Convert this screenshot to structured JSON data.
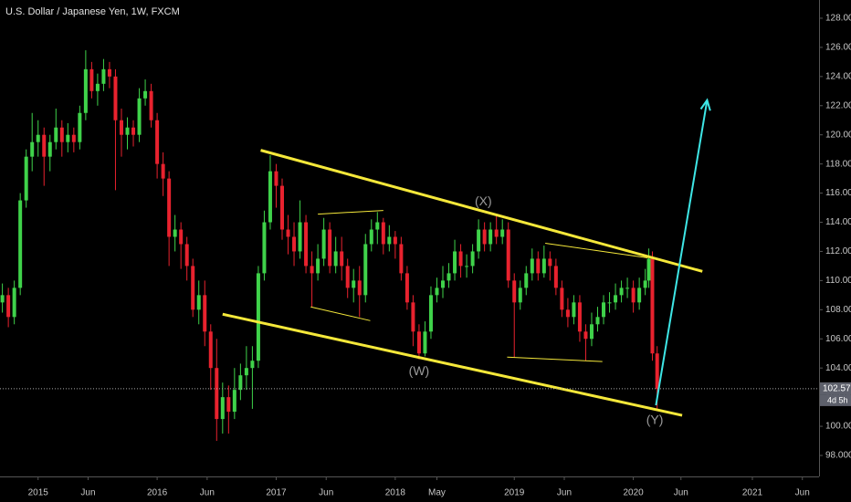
{
  "chart_data": {
    "type": "candlestick",
    "title": "U.S. Dollar / Japanese Yen, 1W, FXCM",
    "up_color": "#3fd24a",
    "down_color": "#e8222e",
    "xlim": [
      2014.68,
      2021.56
    ],
    "ylim": [
      96.56,
      129.25
    ],
    "xticks": [
      {
        "value": 2015,
        "label": "2015"
      },
      {
        "value": 2015.42,
        "label": "Jun"
      },
      {
        "value": 2016,
        "label": "2016"
      },
      {
        "value": 2016.42,
        "label": "Jun"
      },
      {
        "value": 2017,
        "label": "2017"
      },
      {
        "value": 2017.42,
        "label": "Jun"
      },
      {
        "value": 2018,
        "label": "2018"
      },
      {
        "value": 2018.35,
        "label": "May"
      },
      {
        "value": 2019,
        "label": "2019"
      },
      {
        "value": 2019.42,
        "label": "Jun"
      },
      {
        "value": 2020,
        "label": "2020"
      },
      {
        "value": 2020.4,
        "label": "Jun"
      },
      {
        "value": 2021,
        "label": "2021"
      },
      {
        "value": 2021.42,
        "label": "Jun"
      }
    ],
    "yticks": [
      {
        "value": 98,
        "label": "98.000"
      },
      {
        "value": 100,
        "label": "100.000"
      },
      {
        "value": 102,
        "label": "102.000"
      },
      {
        "value": 104,
        "label": "104.000"
      },
      {
        "value": 106,
        "label": "106.000"
      },
      {
        "value": 108,
        "label": "108.000"
      },
      {
        "value": 110,
        "label": "110.000"
      },
      {
        "value": 112,
        "label": "112.000"
      },
      {
        "value": 114,
        "label": "114.000"
      },
      {
        "value": 116,
        "label": "116.000"
      },
      {
        "value": 118,
        "label": "118.000"
      },
      {
        "value": 120,
        "label": "120.000"
      },
      {
        "value": 122,
        "label": "122.000"
      },
      {
        "value": 124,
        "label": "124.000"
      },
      {
        "value": 126,
        "label": "126.000"
      },
      {
        "value": 128,
        "label": "128.000"
      }
    ],
    "x": [
      2014.7,
      2014.75,
      2014.8,
      2014.85,
      2014.9,
      2014.95,
      2015.0,
      2015.05,
      2015.1,
      2015.15,
      2015.2,
      2015.25,
      2015.3,
      2015.35,
      2015.4,
      2015.45,
      2015.5,
      2015.55,
      2015.6,
      2015.65,
      2015.7,
      2015.75,
      2015.8,
      2015.85,
      2015.9,
      2015.95,
      2016.0,
      2016.05,
      2016.1,
      2016.15,
      2016.2,
      2016.25,
      2016.3,
      2016.35,
      2016.4,
      2016.45,
      2016.5,
      2016.55,
      2016.6,
      2016.65,
      2016.7,
      2016.75,
      2016.8,
      2016.85,
      2016.9,
      2016.95,
      2017.0,
      2017.05,
      2017.1,
      2017.15,
      2017.2,
      2017.25,
      2017.3,
      2017.35,
      2017.4,
      2017.45,
      2017.5,
      2017.55,
      2017.6,
      2017.65,
      2017.7,
      2017.75,
      2017.8,
      2017.85,
      2017.9,
      2017.95,
      2018.0,
      2018.05,
      2018.1,
      2018.15,
      2018.2,
      2018.25,
      2018.3,
      2018.35,
      2018.4,
      2018.45,
      2018.5,
      2018.55,
      2018.6,
      2018.65,
      2018.7,
      2018.75,
      2018.8,
      2018.85,
      2018.9,
      2018.95,
      2019.0,
      2019.05,
      2019.1,
      2019.15,
      2019.2,
      2019.25,
      2019.3,
      2019.35,
      2019.4,
      2019.45,
      2019.5,
      2019.55,
      2019.6,
      2019.65,
      2019.7,
      2019.75,
      2019.8,
      2019.85,
      2019.9,
      2019.95,
      2020.0,
      2020.05,
      2020.1,
      2020.13,
      2020.16,
      2020.2
    ],
    "open": [
      108.5,
      109.0,
      107.5,
      109.5,
      115.5,
      118.5,
      119.5,
      120.0,
      118.5,
      119.5,
      120.5,
      119.5,
      120.0,
      119.5,
      121.5,
      124.5,
      123.0,
      123.5,
      124.5,
      124.0,
      121.0,
      120.0,
      120.5,
      120.0,
      122.5,
      123.0,
      121.0,
      118.0,
      117.0,
      113.0,
      113.5,
      112.5,
      111.0,
      108.0,
      109.0,
      106.5,
      104.0,
      100.5,
      102.0,
      101.0,
      102.5,
      103.5,
      104.0,
      104.5,
      110.5,
      114.0,
      117.5,
      116.5,
      113.5,
      113.0,
      112.0,
      114.0,
      111.0,
      110.5,
      111.5,
      113.5,
      111.0,
      112.0,
      111.0,
      109.5,
      110.0,
      109.0,
      112.5,
      113.5,
      114.0,
      112.5,
      113.0,
      112.5,
      110.5,
      108.5,
      106.5,
      105.0,
      106.5,
      109.0,
      109.5,
      110.0,
      110.5,
      112.0,
      111.0,
      111.0,
      112.0,
      113.5,
      112.5,
      113.5,
      113.0,
      113.5,
      110.0,
      108.5,
      109.5,
      110.5,
      111.5,
      110.5,
      111.5,
      111.0,
      109.5,
      108.0,
      107.5,
      108.5,
      106.5,
      106.0,
      107.0,
      107.5,
      108.5,
      108.5,
      109.0,
      109.5,
      109.5,
      108.5,
      109.5,
      110.0,
      111.5,
      105.0
    ],
    "high": [
      109.8,
      109.5,
      110.0,
      116.0,
      119.0,
      121.5,
      121.0,
      120.5,
      120.0,
      121.8,
      121.0,
      120.8,
      120.5,
      122.0,
      125.8,
      125.0,
      124.2,
      125.2,
      125.0,
      124.5,
      121.8,
      121.2,
      121.0,
      123.2,
      123.8,
      123.5,
      121.5,
      118.8,
      117.5,
      114.5,
      114.0,
      113.0,
      111.5,
      110.0,
      110.0,
      107.0,
      106.0,
      103.0,
      102.8,
      104.0,
      104.3,
      105.5,
      105.5,
      111.0,
      114.8,
      118.6,
      118.0,
      117.0,
      114.5,
      114.0,
      115.5,
      114.5,
      112.0,
      112.5,
      114.3,
      114.0,
      113.0,
      113.0,
      111.5,
      110.8,
      111.0,
      113.2,
      114.2,
      114.7,
      114.3,
      113.8,
      113.4,
      113.0,
      111.0,
      109.0,
      107.0,
      107.2,
      109.6,
      110.2,
      111.0,
      111.2,
      112.8,
      112.5,
      111.8,
      112.5,
      114.2,
      114.0,
      114.0,
      114.5,
      114.2,
      114.0,
      110.5,
      110.0,
      111.0,
      112.2,
      112.0,
      112.4,
      112.0,
      111.5,
      110.0,
      108.8,
      109.0,
      109.0,
      107.0,
      107.8,
      108.2,
      109.0,
      109.2,
      109.8,
      110.0,
      110.2,
      110.0,
      110.2,
      110.8,
      112.2,
      112.0,
      105.5
    ],
    "low": [
      107.8,
      106.8,
      107.0,
      109.0,
      115.0,
      117.5,
      118.5,
      116.5,
      117.5,
      119.0,
      118.5,
      118.8,
      118.8,
      119.0,
      121.0,
      122.5,
      122.0,
      123.0,
      123.2,
      116.2,
      118.5,
      119.0,
      119.2,
      119.5,
      122.0,
      120.5,
      117.0,
      115.8,
      111.0,
      112.0,
      110.8,
      110.0,
      107.5,
      107.0,
      105.5,
      102.5,
      99.0,
      99.5,
      99.5,
      100.5,
      101.8,
      102.5,
      101.2,
      104.0,
      110.0,
      113.5,
      115.0,
      112.8,
      111.8,
      111.0,
      111.5,
      110.5,
      108.2,
      110.0,
      111.0,
      110.5,
      110.5,
      110.0,
      108.8,
      108.5,
      107.5,
      108.5,
      112.0,
      112.5,
      111.8,
      112.0,
      111.5,
      110.0,
      108.0,
      105.5,
      104.6,
      104.8,
      106.0,
      108.5,
      108.8,
      109.5,
      110.0,
      110.2,
      110.2,
      110.5,
      111.5,
      112.0,
      112.0,
      112.5,
      112.5,
      109.5,
      104.7,
      108.0,
      109.0,
      110.0,
      110.0,
      110.2,
      110.0,
      109.0,
      107.5,
      106.8,
      107.0,
      105.8,
      104.5,
      105.5,
      106.5,
      107.0,
      107.8,
      108.0,
      108.5,
      108.8,
      107.8,
      108.0,
      109.0,
      109.5,
      104.5,
      101.2
    ],
    "close": [
      109.0,
      107.5,
      109.5,
      115.5,
      118.5,
      119.5,
      120.0,
      118.5,
      119.5,
      120.5,
      119.5,
      120.0,
      119.5,
      121.5,
      124.5,
      123.0,
      123.5,
      124.5,
      124.0,
      121.0,
      120.0,
      120.5,
      120.0,
      122.5,
      123.0,
      121.0,
      118.0,
      117.0,
      113.0,
      113.5,
      112.5,
      111.0,
      108.0,
      109.0,
      106.5,
      104.0,
      100.5,
      102.0,
      101.0,
      102.5,
      103.5,
      104.0,
      104.5,
      110.5,
      114.0,
      117.5,
      116.5,
      113.5,
      113.0,
      112.0,
      114.0,
      111.0,
      110.5,
      111.5,
      113.5,
      111.0,
      112.0,
      111.0,
      109.5,
      110.0,
      109.0,
      112.5,
      113.5,
      114.0,
      112.5,
      113.0,
      112.5,
      110.5,
      108.5,
      106.5,
      105.0,
      106.5,
      109.0,
      109.5,
      110.0,
      110.5,
      112.0,
      111.0,
      111.0,
      112.0,
      113.5,
      112.5,
      113.5,
      113.0,
      113.5,
      110.0,
      108.5,
      109.5,
      110.5,
      111.5,
      110.5,
      111.5,
      111.0,
      109.5,
      108.0,
      107.5,
      108.5,
      106.5,
      106.0,
      107.0,
      107.5,
      108.5,
      108.5,
      109.0,
      109.5,
      109.5,
      108.5,
      109.5,
      110.0,
      111.5,
      105.0,
      102.577
    ],
    "last_price": {
      "value": 102.577,
      "label": "102.577"
    },
    "countdown": "4d 5h",
    "drawings": [
      {
        "x": [
          2016.87,
          2020.58
        ],
        "y": [
          118.94,
          110.63
        ],
        "color": "#f5e83a",
        "width": 3
      },
      {
        "x": [
          2016.55,
          2020.41
        ],
        "y": [
          107.69,
          100.75
        ],
        "color": "#f5e83a",
        "width": 3
      },
      {
        "x": [
          2017.35,
          2017.9
        ],
        "y": [
          114.56,
          114.81
        ],
        "color": "#f5e83a",
        "width": 1
      },
      {
        "x": [
          2017.29,
          2017.79
        ],
        "y": [
          108.19,
          107.25
        ],
        "color": "#f5e83a",
        "width": 1
      },
      {
        "x": [
          2019.26,
          2020.12
        ],
        "y": [
          112.56,
          111.56
        ],
        "color": "#f5e83a",
        "width": 1
      },
      {
        "x": [
          2018.94,
          2019.74
        ],
        "y": [
          104.75,
          104.44
        ],
        "color": "#f5e83a",
        "width": 1
      }
    ],
    "arrow": {
      "x": [
        2020.19,
        2020.62
      ],
      "y": [
        101.44,
        122.38
      ],
      "color": "#3ee6e6"
    },
    "annotations": [
      {
        "text": "(X)",
        "x": 2018.74,
        "y": 115.4
      },
      {
        "text": "(W)",
        "x": 2018.2,
        "y": 103.75
      },
      {
        "text": "(Y)",
        "x": 2020.18,
        "y": 100.4
      }
    ]
  }
}
